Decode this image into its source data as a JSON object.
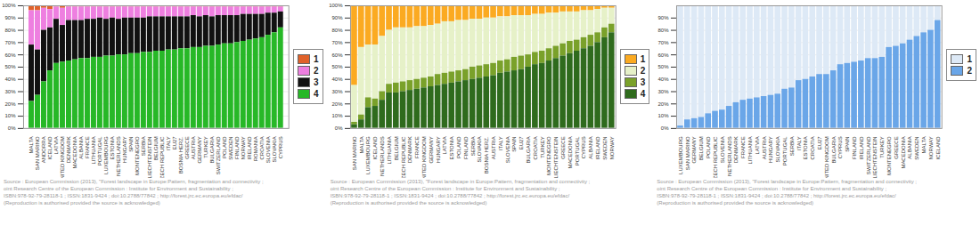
{
  "chart_data": [
    {
      "type": "bar",
      "stacked": true,
      "grid": true,
      "legend": "right",
      "categories": [
        "MALTA",
        "SAN MARINO",
        "ANDORRA",
        "ICELAND",
        "LATVIA",
        "UNITED KINGDOM",
        "DENMARK",
        "MACEDONIA",
        "ALBANIA",
        "FRANCE",
        "LITHUANIA",
        "PORTUGAL",
        "LUXEMBOURG",
        "ESTONIA",
        "NETHERLANDS",
        "HUNGARY",
        "SPAIN",
        "MONTENEGRO",
        "SERBIA",
        "LIECHTENSTEIN",
        "BELGIUM",
        "CZECH REPUBLIC",
        "ITALY",
        "EU27",
        "BOSNIA HERZ.",
        "GREECE",
        "AUSTRIA",
        "GERMANY",
        "TURKEY",
        "BULGARIA",
        "SWITZERLAND",
        "POLAND",
        "SWEDEN",
        "FINLAND",
        "NORWAY",
        "IRELAND",
        "ROMANIA",
        "CROATIA",
        "SLOVENIA",
        "SLOVAKIA",
        "CYPRUS"
      ],
      "series": [
        {
          "name": "1",
          "color": "#e0622a",
          "values": [
            4,
            4,
            2,
            3,
            1,
            2,
            1,
            1,
            1,
            1,
            1,
            1,
            1,
            1,
            1,
            1,
            1,
            1,
            1,
            1,
            1,
            1,
            1,
            1,
            1,
            1,
            1,
            1,
            1,
            1,
            1,
            1,
            1,
            1,
            1,
            1,
            1,
            1,
            1,
            1,
            1
          ]
        },
        {
          "name": "2",
          "color": "#ee7fe0",
          "values": [
            28,
            32,
            18,
            15,
            10,
            14,
            11,
            11,
            11,
            10,
            10,
            9,
            10,
            9,
            10,
            9,
            9,
            9,
            9,
            8,
            8,
            8,
            8,
            8,
            8,
            8,
            7,
            8,
            7,
            8,
            7,
            7,
            7,
            7,
            6,
            6,
            6,
            6,
            5,
            5,
            4
          ]
        },
        {
          "name": "3",
          "color": "#111111",
          "values": [
            46,
            37,
            42,
            35,
            36,
            30,
            33,
            32,
            31,
            32,
            31,
            32,
            30,
            31,
            29,
            30,
            29,
            29,
            28,
            29,
            28,
            28,
            27,
            27,
            26,
            26,
            26,
            25,
            25,
            24,
            24,
            23,
            23,
            22,
            22,
            21,
            20,
            19,
            18,
            16,
            13
          ]
        },
        {
          "name": "4",
          "color": "#27b827",
          "values": [
            22,
            27,
            38,
            47,
            53,
            54,
            55,
            56,
            57,
            57,
            58,
            58,
            59,
            59,
            60,
            60,
            61,
            61,
            62,
            62,
            63,
            63,
            64,
            64,
            65,
            65,
            66,
            66,
            67,
            67,
            68,
            69,
            69,
            70,
            71,
            72,
            73,
            74,
            76,
            78,
            82
          ]
        }
      ],
      "ylim": [
        0,
        100
      ],
      "yticks": [
        {
          "value": 0,
          "label": "0%"
        },
        {
          "value": 10,
          "label": "10%"
        },
        {
          "value": 20,
          "label": "20%"
        },
        {
          "value": 30,
          "label": "30%"
        },
        {
          "value": 40,
          "label": "40%"
        },
        {
          "value": 50,
          "label": "50%"
        },
        {
          "value": 60,
          "label": "60%"
        },
        {
          "value": 70,
          "label": "70%"
        },
        {
          "value": 80,
          "label": "80%"
        },
        {
          "value": 90,
          "label": "90%"
        },
        {
          "value": 100,
          "label": "100%"
        }
      ],
      "caption": [
        "Source : European Commission (2013), \"Forest landscape in Europe:Pattern, fragmentation and connectivity ;",
        "oint Research Centre of the European Commission : Institute for Environment and Sustainability ;",
        "ISBN:978-92-79-28118-1 ; ISSN:1831-9424 ; doi:10.2788/77842 ; http://forest.jrc.ec.europa.eu/efdac/",
        "(Reproduction is authorised provided the source is acknowledged)"
      ]
    },
    {
      "type": "bar",
      "stacked": true,
      "grid": true,
      "legend": "right",
      "categories": [
        "SAN MARINO",
        "MALTA",
        "LUXEMBOURG",
        "ICELAND",
        "NETHERLANDS",
        "LITHUANIA",
        "BELGIUM",
        "CZECH REPUBLIC",
        "DENMARK",
        "FRANCE",
        "UNITED KINGDOM",
        "GERMANY",
        "HUNGARY",
        "LATVIA",
        "ESTONIA",
        "POLAND",
        "FINLAND",
        "SERBIA",
        "SLOVAKIA",
        "BOSNIA HERZ.",
        "AUSTRIA",
        "ITALY",
        "SLOVENIA",
        "SPAIN",
        "EU27",
        "BULGARIA",
        "CROATIA",
        "TURKEY",
        "MONTENEGRO",
        "LIECHTENSTEIN",
        "GREECE",
        "MACEDONIA",
        "PORTUGAL",
        "CYPRUS",
        "ALBANIA",
        "IRELAND",
        "SWEDEN",
        "NORWAY"
      ],
      "series": [
        {
          "name": "1",
          "color": "#fbaa21",
          "values": [
            65,
            34,
            32,
            32,
            25,
            20,
            18,
            18,
            18,
            17,
            17,
            16,
            15,
            13,
            13,
            12,
            12,
            11,
            11,
            10,
            10,
            9,
            9,
            8,
            8,
            8,
            7,
            7,
            6,
            6,
            5,
            5,
            5,
            4,
            4,
            3,
            2,
            2
          ]
        },
        {
          "name": "2",
          "color": "#e6f1c8",
          "values": [
            30,
            55,
            43,
            44,
            45,
            44,
            45,
            44,
            43,
            43,
            42,
            42,
            41,
            42,
            41,
            41,
            40,
            39,
            38,
            38,
            37,
            36,
            35,
            34,
            33,
            32,
            31,
            30,
            29,
            27,
            26,
            24,
            23,
            22,
            20,
            19,
            16,
            13
          ]
        },
        {
          "name": "3",
          "color": "#7aa12a",
          "values": [
            2,
            4,
            8,
            6,
            7,
            7,
            8,
            8,
            8,
            8,
            8,
            8,
            9,
            9,
            9,
            9,
            9,
            10,
            10,
            10,
            10,
            10,
            10,
            11,
            11,
            10,
            10,
            10,
            10,
            10,
            10,
            10,
            9,
            9,
            9,
            8,
            8,
            7
          ]
        },
        {
          "name": "4",
          "color": "#2f6b1d",
          "values": [
            3,
            7,
            17,
            18,
            23,
            29,
            29,
            30,
            31,
            32,
            33,
            34,
            35,
            36,
            37,
            38,
            39,
            40,
            41,
            42,
            43,
            45,
            46,
            47,
            48,
            50,
            52,
            53,
            55,
            57,
            59,
            61,
            63,
            65,
            67,
            70,
            74,
            78
          ]
        }
      ],
      "ylim": [
        0,
        100
      ],
      "yticks": [
        {
          "value": 0,
          "label": "0%"
        },
        {
          "value": 10,
          "label": "10%"
        },
        {
          "value": 20,
          "label": "20%"
        },
        {
          "value": 30,
          "label": "30%"
        },
        {
          "value": 40,
          "label": "40%"
        },
        {
          "value": 50,
          "label": "50%"
        },
        {
          "value": 60,
          "label": "60%"
        },
        {
          "value": 70,
          "label": "70%"
        },
        {
          "value": 80,
          "label": "80%"
        },
        {
          "value": 90,
          "label": "90%"
        },
        {
          "value": 100,
          "label": "100%"
        }
      ],
      "caption": [
        "Source : European Commission (2013), \"Forest landscape in Europe:Pattern, fragmentation and connectivity ;",
        "oint Research Centre of the European Commission : Institute for Environment and Sustainability ;",
        "ISBN:978-92-79-28118-1 ; ISSN:1831-9424 ; doi:10.2788/77842 ; http://forest.jrc.ec.europa.eu/efdac/",
        "(Reproduction is authorised provided the source is acknowledged)"
      ]
    },
    {
      "type": "bar",
      "stacked": true,
      "grid": true,
      "legend": "right",
      "categories": [
        "LUXEMBOURG",
        "SAN MARINO",
        "GERMANY",
        "BELGIUM",
        "POLAND",
        "CZECH REPUBLIC",
        "SLOVENIA",
        "NETHERLANDS",
        "DENMARK",
        "FRANCE",
        "LITHUANIA",
        "LATVIA",
        "AUSTRIA",
        "HUNGARY",
        "SLOVAKIA",
        "PORTUGAL",
        "SERBIA",
        "ITALY",
        "ESTONIA",
        "CROATIA",
        "EU27",
        "UNITED KINGDOM",
        "BULGARIA",
        "CYPRUS",
        "SPAIN",
        "FINLAND",
        "IRELAND",
        "SWITZERLAND",
        "LIECHTENSTEIN",
        "TURKEY",
        "MONTENEGRO",
        "GREECE",
        "MACEDONIA",
        "ALBANIA",
        "SWEDEN",
        "MALTA",
        "NORWAY",
        "ICELAND"
      ],
      "series": [
        {
          "name": "1",
          "color": "#dde9f6",
          "values": [
            98,
            93,
            92,
            91,
            88,
            86,
            85,
            82,
            79,
            77,
            76,
            75,
            74,
            73,
            72,
            68,
            67,
            61,
            60,
            58,
            56,
            56,
            53,
            48,
            47,
            46,
            45,
            43,
            43,
            42,
            34,
            33,
            31,
            28,
            25,
            22,
            20,
            12
          ]
        },
        {
          "name": "2",
          "color": "#6aa6e8",
          "values": [
            2,
            7,
            8,
            9,
            12,
            14,
            15,
            18,
            21,
            23,
            24,
            25,
            26,
            27,
            28,
            32,
            33,
            39,
            40,
            42,
            44,
            44,
            47,
            52,
            53,
            54,
            55,
            57,
            57,
            58,
            66,
            67,
            69,
            72,
            75,
            78,
            80,
            88
          ]
        }
      ],
      "ylim": [
        0,
        100
      ],
      "yticks": [
        {
          "value": 0,
          "label": "0%"
        },
        {
          "value": 10,
          "label": "10%"
        },
        {
          "value": 20,
          "label": "20%"
        },
        {
          "value": 30,
          "label": "30%"
        },
        {
          "value": 40,
          "label": "40%"
        },
        {
          "value": 50,
          "label": "50%"
        },
        {
          "value": 60,
          "label": "60%"
        },
        {
          "value": 70,
          "label": "70%"
        },
        {
          "value": 80,
          "label": "80%"
        },
        {
          "value": 90,
          "label": "90%"
        }
      ],
      "caption": [
        "Source : European Commission (2013), \"Forest landscape in Europe:Pattern, fragmentation and connectivity ;",
        "oint Research Centre of the European Commission : Institute for Environment and Sustainability ;",
        "ISBN:978-92-79-28118-1 ; ISSN:1831-9424 ; doi:10.2788/77842 ; http://forest.jrc.ec.europa.eu/efdac/",
        "(Reproduction is authorised provided the source is acknowledged)"
      ]
    }
  ]
}
